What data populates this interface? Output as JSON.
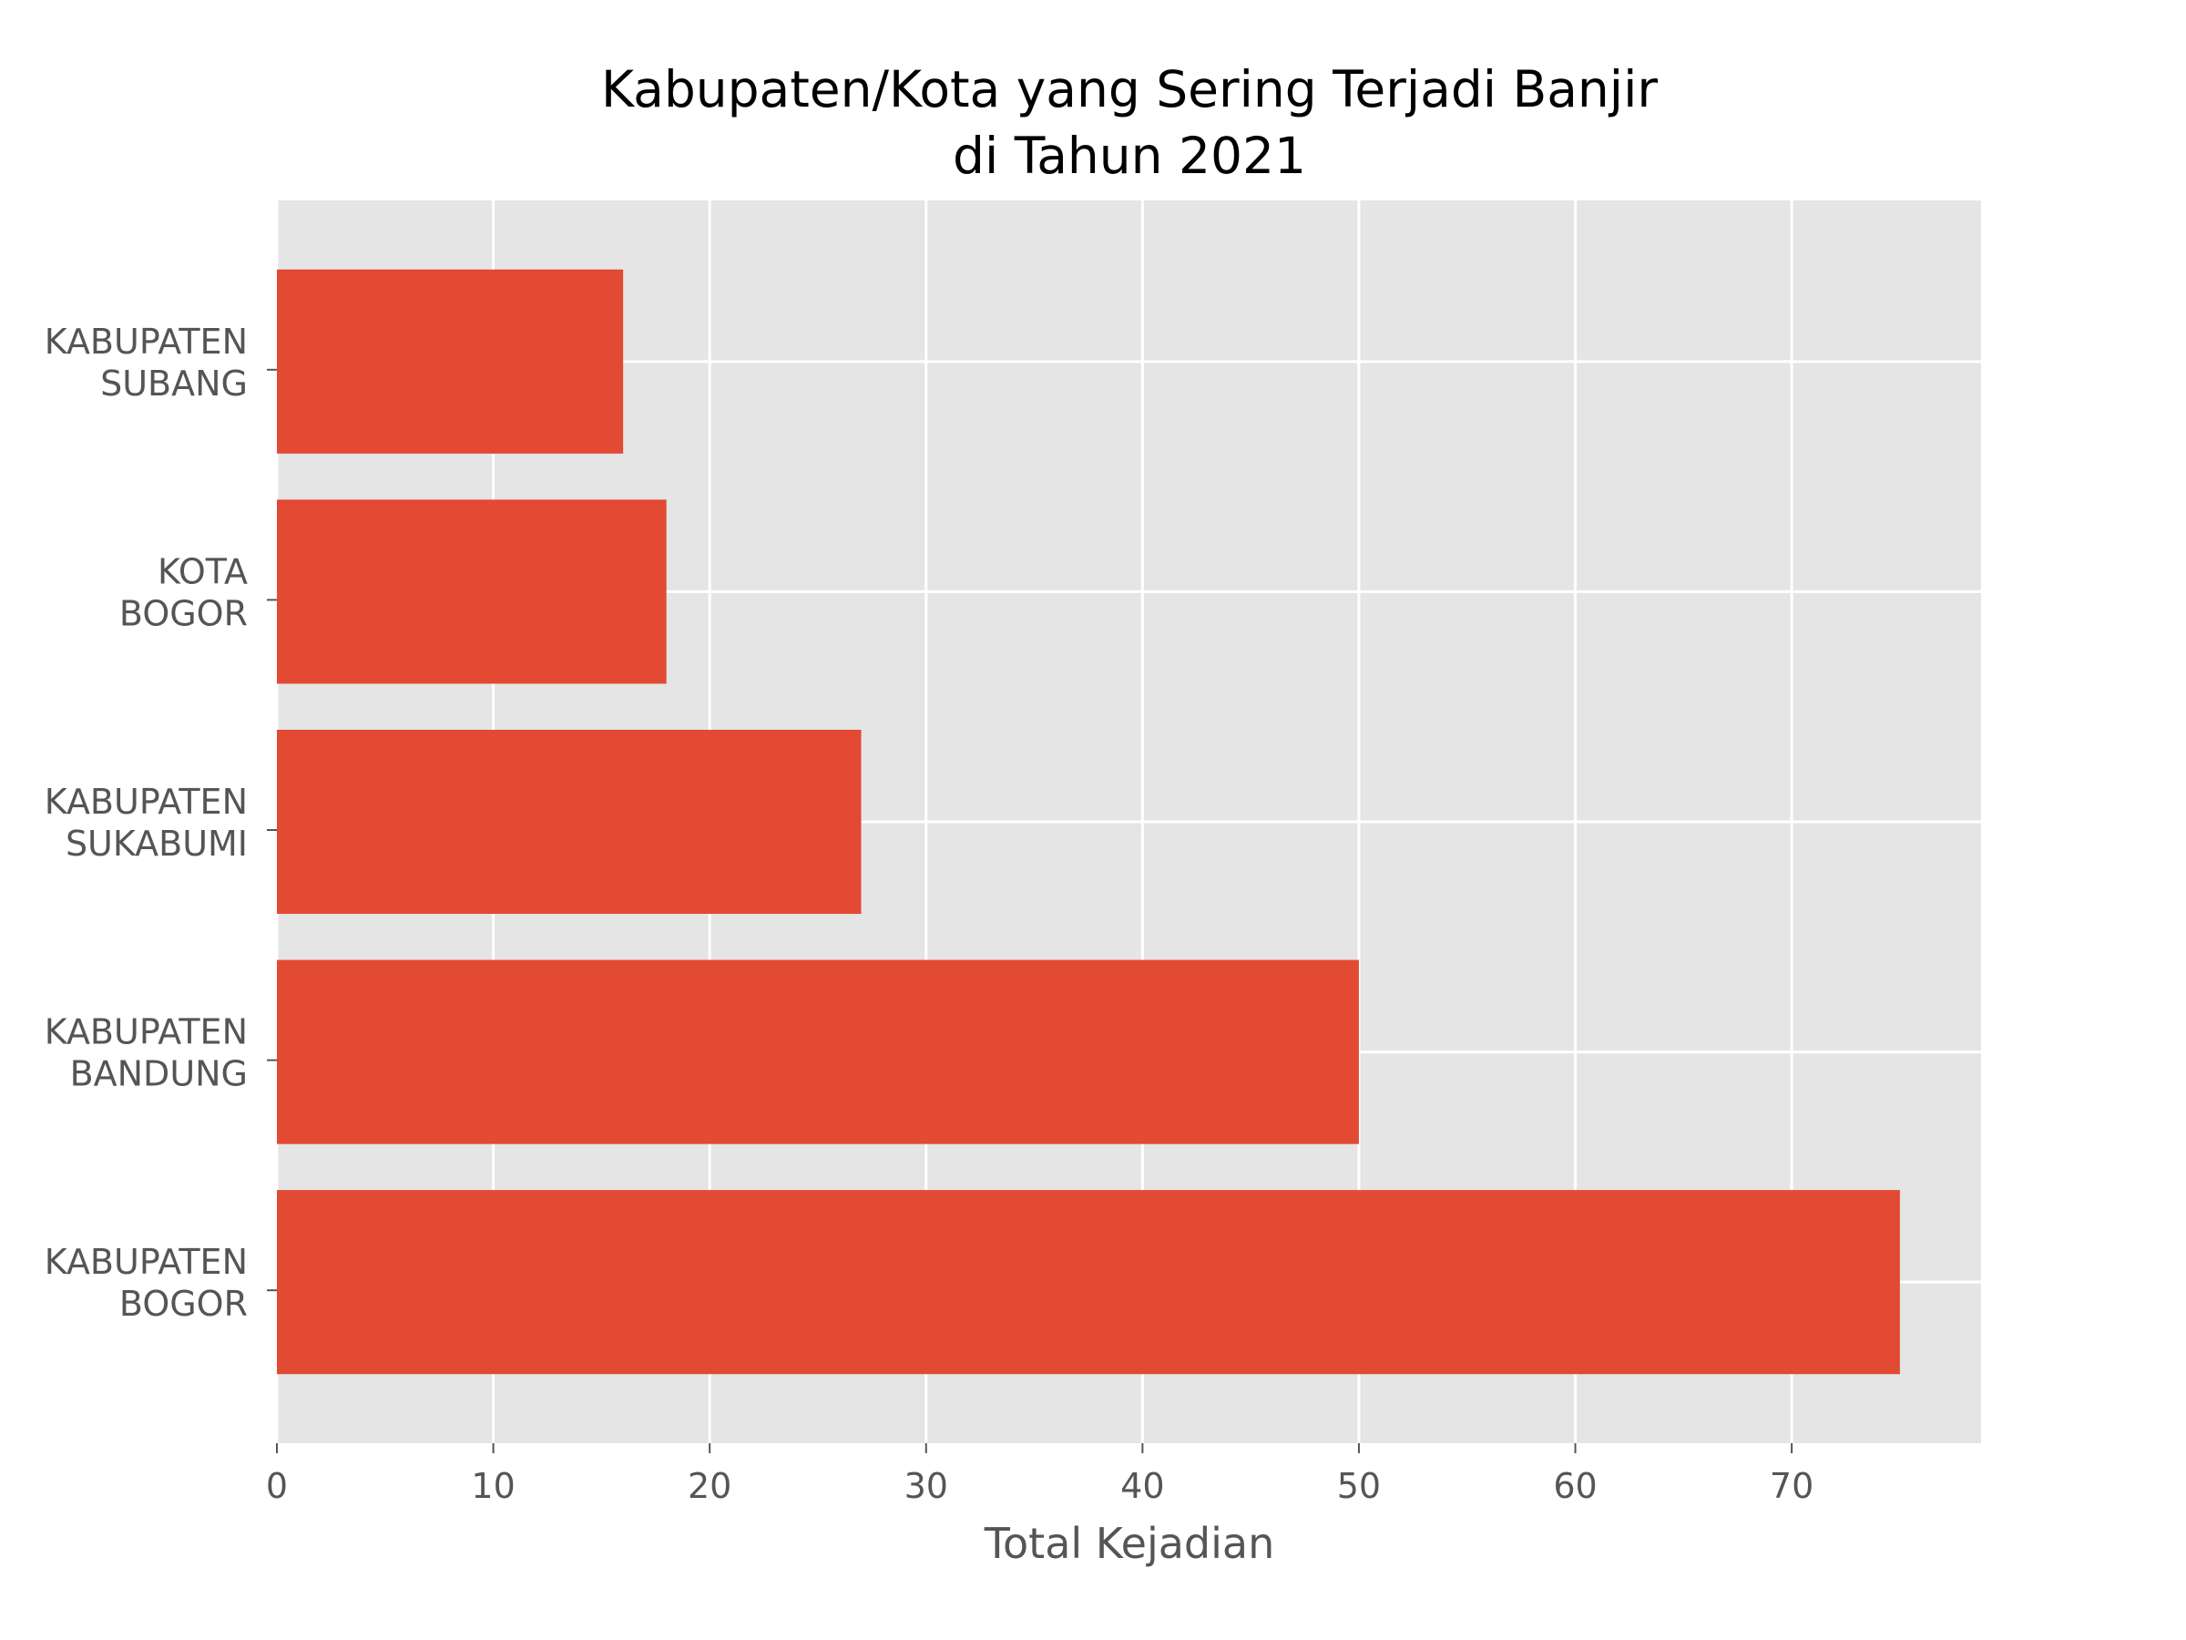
{
  "chart_data": {
    "type": "bar",
    "orientation": "horizontal",
    "title_lines": [
      "Kabupaten/Kota yang Sering Terjadi Banjir",
      "di Tahun 2021"
    ],
    "xlabel": "Total Kejadian",
    "ylabel": "",
    "categories": [
      [
        "KABUPATEN",
        "SUBANG"
      ],
      [
        "KOTA",
        "BOGOR"
      ],
      [
        "KABUPATEN",
        "SUKABUMI"
      ],
      [
        "KABUPATEN",
        "BANDUNG"
      ],
      [
        "KABUPATEN",
        "BOGOR"
      ]
    ],
    "values": [
      16,
      18,
      27,
      50,
      75
    ],
    "xlim": [
      0,
      78.75
    ],
    "xticks": [
      "0",
      "10",
      "20",
      "30",
      "40",
      "50",
      "60",
      "70"
    ],
    "grid": true,
    "style": "ggplot",
    "colors": {
      "bar": "#E24A33",
      "axes_bg": "#E5E5E5",
      "grid": "#FFFFFF",
      "tick_text": "#555555",
      "title_text": "#000000"
    }
  }
}
